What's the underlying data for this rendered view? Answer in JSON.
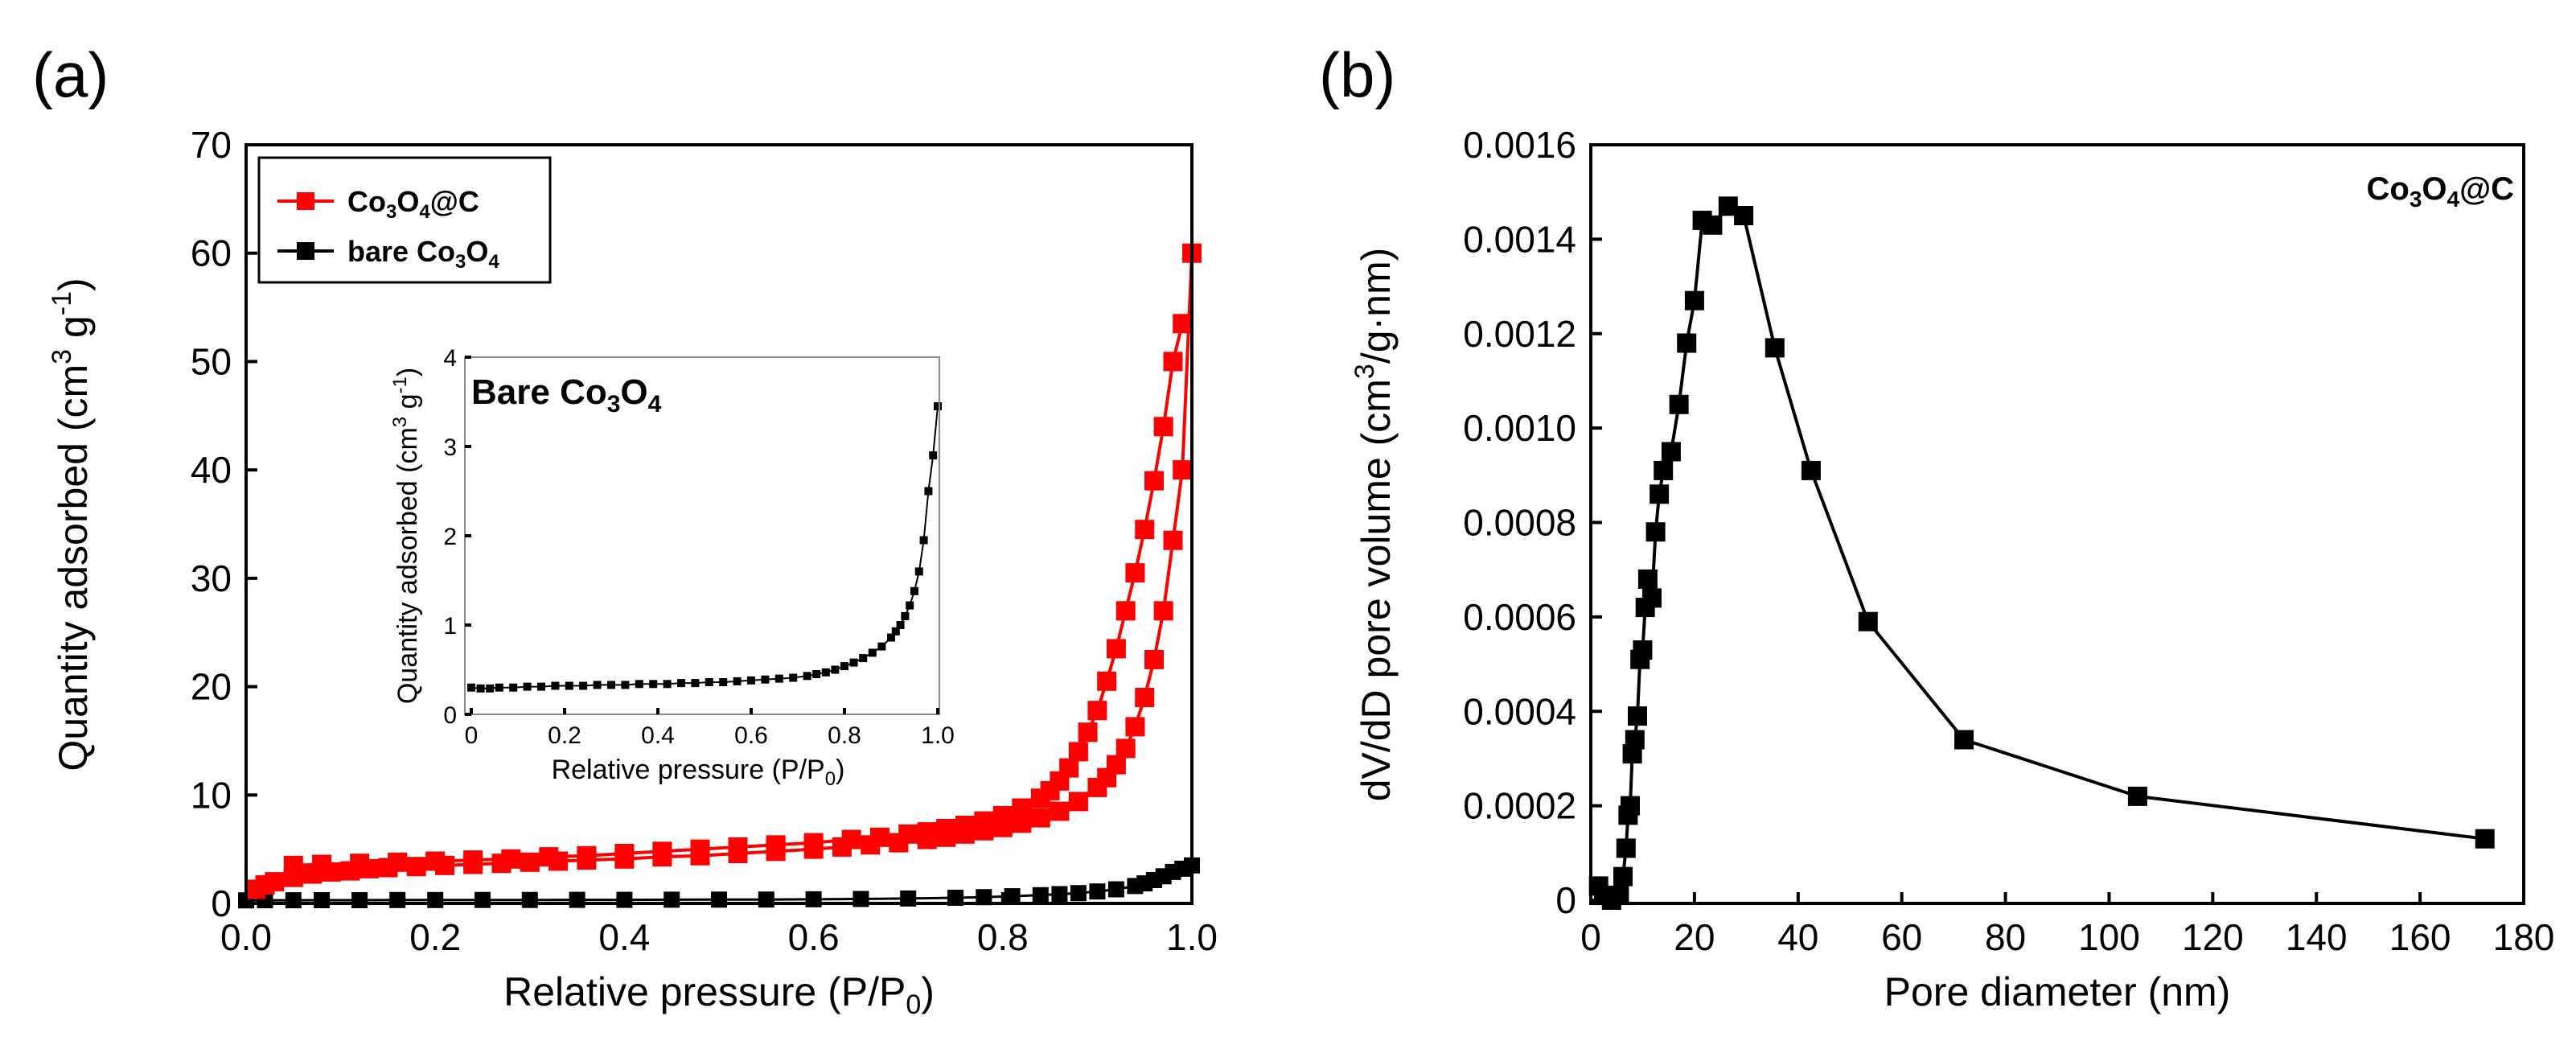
{
  "chart_data": [
    {
      "type": "scatter",
      "panel_label": "(a)",
      "xlabel": "Relative pressure (P/P0)",
      "xlabel_main": "Relative pressure (P/P",
      "xlabel_sub": "0",
      "xlabel_end": ")",
      "ylabel": "Quantity adsorbed (cm3 g-1)",
      "ylabel_main": "Quantity adsorbed (cm",
      "ylabel_sup1": "3",
      "ylabel_mid": " g",
      "ylabel_sup2": "-1",
      "ylabel_end": ")",
      "xlim": [
        0.0,
        1.0
      ],
      "ylim": [
        0,
        70
      ],
      "xticks": [
        "0.0",
        "0.2",
        "0.4",
        "0.6",
        "0.8",
        "1.0"
      ],
      "yticks": [
        "0",
        "10",
        "20",
        "30",
        "40",
        "50",
        "60",
        "70"
      ],
      "legend_position": "top-left",
      "series": [
        {
          "name": "Co3O4@C",
          "name_parts": [
            "Co",
            "3",
            "O",
            "4",
            "@C"
          ],
          "color": "#ff0000",
          "marker": "square",
          "adsorption": {
            "x": [
              0.01,
              0.02,
              0.03,
              0.05,
              0.07,
              0.09,
              0.11,
              0.13,
              0.15,
              0.18,
              0.21,
              0.24,
              0.27,
              0.3,
              0.33,
              0.36,
              0.4,
              0.44,
              0.48,
              0.52,
              0.56,
              0.6,
              0.63,
              0.66,
              0.69,
              0.72,
              0.74,
              0.76,
              0.78,
              0.8,
              0.82,
              0.84,
              0.86,
              0.88,
              0.9,
              0.91,
              0.92,
              0.93,
              0.94,
              0.95,
              0.96,
              0.97,
              0.98,
              0.99,
              1.0
            ],
            "y": [
              1.3,
              1.7,
              2.0,
              2.4,
              2.7,
              2.9,
              3.0,
              3.2,
              3.3,
              3.4,
              3.5,
              3.6,
              3.7,
              3.8,
              3.9,
              4.0,
              4.1,
              4.3,
              4.4,
              4.6,
              4.8,
              5.0,
              5.2,
              5.4,
              5.6,
              5.9,
              6.1,
              6.4,
              6.7,
              7.0,
              7.4,
              7.9,
              8.5,
              9.4,
              10.7,
              11.6,
              12.8,
              14.3,
              16.3,
              19.0,
              22.5,
              27.0,
              33.5,
              40.0,
              60.0
            ]
          },
          "desorption": {
            "x": [
              0.99,
              0.98,
              0.97,
              0.96,
              0.95,
              0.94,
              0.93,
              0.92,
              0.91,
              0.9,
              0.89,
              0.88,
              0.87,
              0.86,
              0.85,
              0.84,
              0.82,
              0.8,
              0.78,
              0.76,
              0.74,
              0.72,
              0.7,
              0.67,
              0.64,
              0.6,
              0.56,
              0.52,
              0.48,
              0.44,
              0.4,
              0.36,
              0.32,
              0.28,
              0.24,
              0.2,
              0.16,
              0.12,
              0.08,
              0.05
            ],
            "y": [
              53.5,
              50.0,
              44.0,
              39.0,
              34.5,
              30.5,
              27.0,
              23.5,
              20.5,
              17.8,
              15.8,
              14.0,
              12.5,
              11.3,
              10.4,
              9.7,
              8.8,
              8.1,
              7.6,
              7.2,
              6.9,
              6.6,
              6.4,
              6.1,
              5.9,
              5.6,
              5.4,
              5.2,
              5.0,
              4.8,
              4.6,
              4.4,
              4.3,
              4.1,
              4.0,
              3.9,
              3.8,
              3.7,
              3.6,
              3.5
            ]
          }
        },
        {
          "name": "bare Co3O4",
          "name_parts": [
            "bare Co",
            "3",
            "O",
            "4",
            ""
          ],
          "color": "#000000",
          "marker": "square",
          "x": [
            0.0,
            0.02,
            0.05,
            0.08,
            0.12,
            0.16,
            0.2,
            0.25,
            0.3,
            0.35,
            0.4,
            0.45,
            0.5,
            0.55,
            0.6,
            0.65,
            0.7,
            0.75,
            0.78,
            0.81,
            0.84,
            0.86,
            0.88,
            0.9,
            0.92,
            0.94,
            0.95,
            0.96,
            0.97,
            0.98,
            0.99,
            1.0
          ],
          "y": [
            0.28,
            0.29,
            0.29,
            0.3,
            0.3,
            0.31,
            0.31,
            0.32,
            0.32,
            0.33,
            0.33,
            0.34,
            0.35,
            0.36,
            0.38,
            0.41,
            0.45,
            0.52,
            0.58,
            0.66,
            0.76,
            0.85,
            0.95,
            1.1,
            1.3,
            1.6,
            1.85,
            2.15,
            2.5,
            2.9,
            3.2,
            3.5
          ]
        }
      ],
      "inset": {
        "title_parts": [
          "Bare Co",
          "3",
          "O",
          "4"
        ],
        "xlabel_main": "Relative pressure (P/P",
        "xlabel_sub": "0",
        "xlabel_end": ")",
        "ylabel_main": "Quantity adsorbed (cm",
        "ylabel_sup1": "3",
        "ylabel_mid": " g",
        "ylabel_sup2": "-1",
        "ylabel_end": ")",
        "xlim": [
          0.0,
          1.0
        ],
        "ylim": [
          0,
          4
        ],
        "xticks": [
          "0",
          "0.2",
          "0.4",
          "0.6",
          "0.8",
          "1.0"
        ],
        "yticks": [
          "0",
          "1",
          "2",
          "3",
          "4"
        ],
        "x": [
          0.0,
          0.02,
          0.04,
          0.06,
          0.09,
          0.12,
          0.15,
          0.18,
          0.21,
          0.24,
          0.27,
          0.3,
          0.33,
          0.36,
          0.39,
          0.42,
          0.45,
          0.48,
          0.51,
          0.54,
          0.57,
          0.6,
          0.63,
          0.66,
          0.69,
          0.72,
          0.74,
          0.76,
          0.78,
          0.8,
          0.82,
          0.84,
          0.86,
          0.88,
          0.9,
          0.91,
          0.92,
          0.93,
          0.94,
          0.95,
          0.96,
          0.97,
          0.98,
          0.99,
          1.0
        ],
        "y": [
          0.3,
          0.29,
          0.29,
          0.3,
          0.3,
          0.31,
          0.31,
          0.32,
          0.32,
          0.32,
          0.33,
          0.33,
          0.33,
          0.34,
          0.34,
          0.34,
          0.35,
          0.35,
          0.36,
          0.36,
          0.37,
          0.38,
          0.39,
          0.4,
          0.41,
          0.43,
          0.45,
          0.47,
          0.5,
          0.54,
          0.58,
          0.63,
          0.69,
          0.76,
          0.86,
          0.93,
          1.0,
          1.1,
          1.22,
          1.38,
          1.6,
          1.95,
          2.5,
          2.9,
          3.45
        ]
      }
    },
    {
      "type": "line",
      "panel_label": "(b)",
      "xlabel": "Pore diameter (nm)",
      "ylabel": "dV/dD pore volume (cm3/g·nm)",
      "ylabel_main": "dV/dD pore volume (cm",
      "ylabel_sup1": "3",
      "ylabel_end": "/g·nm)",
      "xlim": [
        0,
        180
      ],
      "ylim": [
        0,
        0.0016
      ],
      "xticks": [
        "0",
        "20",
        "40",
        "60",
        "80",
        "100",
        "120",
        "140",
        "160",
        "180"
      ],
      "yticks": [
        "0",
        "0.0002",
        "0.0004",
        "0.0006",
        "0.0008",
        "0.0010",
        "0.0012",
        "0.0014",
        "0.0016"
      ],
      "annotation_parts": [
        "Co",
        "3",
        "O",
        "4",
        "@C"
      ],
      "series": [
        {
          "name": "Co3O4@C",
          "color": "#000000",
          "marker": "square",
          "x": [
            1.5,
            2.5,
            4.0,
            5.5,
            6.2,
            6.8,
            7.2,
            7.6,
            8.0,
            8.5,
            9.0,
            9.5,
            10.0,
            10.5,
            11.0,
            11.8,
            12.5,
            13.2,
            14.0,
            15.5,
            17.0,
            18.5,
            20.0,
            21.5,
            23.5,
            26.5,
            29.5,
            35.5,
            42.5,
            53.5,
            72.0,
            105.5,
            172.5
          ],
          "y": [
            3e-05,
            1e-05,
            0.0,
            1e-05,
            5e-05,
            0.00011,
            0.00018,
            0.0002,
            0.00031,
            0.00034,
            0.00039,
            0.00051,
            0.00053,
            0.00062,
            0.00068,
            0.00064,
            0.00078,
            0.00086,
            0.00091,
            0.00095,
            0.00105,
            0.00118,
            0.00127,
            0.00144,
            0.00143,
            0.00147,
            0.00145,
            0.00117,
            0.00091,
            0.00059,
            0.00034,
            0.00022,
            0.00013
          ]
        }
      ]
    }
  ]
}
